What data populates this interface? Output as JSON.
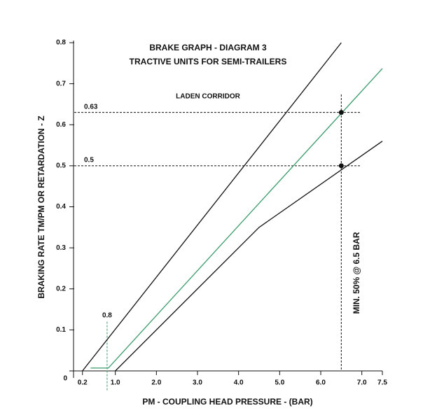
{
  "chart_data": {
    "type": "line",
    "title": "BRAKE GRAPH - DIAGRAM 3",
    "subtitle": "TRACTIVE UNITS FOR SEMI-TRAILERS",
    "x_label": "PM - COUPLING HEAD PRESSURE - (BAR)",
    "y_label": "BRAKING RATE TM/PM OR RETARDATION - Z",
    "xlim": [
      0,
      7.5
    ],
    "xticks": [
      0.2,
      {
        "value": 1,
        "label": "1.0"
      },
      {
        "value": 2,
        "label": "2.0"
      },
      {
        "value": 3,
        "label": "3.0"
      },
      {
        "value": 4,
        "label": "4.0"
      },
      {
        "value": 5,
        "label": "5.0"
      },
      {
        "value": 6,
        "label": "6.0"
      },
      {
        "value": 7,
        "label": "7.0"
      },
      7.5
    ],
    "ylim": [
      0,
      0.8
    ],
    "yticks": [
      0,
      0.1,
      0.2,
      0.3,
      0.4,
      0.5,
      0.6,
      0.7,
      0.8
    ],
    "series": [
      {
        "color": "#111111",
        "x": [
          0.2,
          6.5
        ],
        "values": [
          0,
          0.8
        ]
      },
      {
        "color": "#3a9a6a",
        "x": [
          0.4,
          0.83,
          7.5
        ],
        "values": [
          0.007,
          0.007,
          0.737
        ]
      },
      {
        "color": "#111111",
        "x": [
          1.0,
          4.5,
          7.5
        ],
        "values": [
          0,
          0.35,
          0.56
        ]
      }
    ],
    "h_reference_lines": [
      0.63,
      0.5
    ],
    "v_reference_lines": [
      {
        "value": 0.8,
        "label": "0.8",
        "color": "#3a9a6a"
      },
      {
        "value": 6.5,
        "color": "#111111"
      }
    ],
    "points": {
      "x": [
        6.5,
        6.5
      ],
      "values": [
        0.63,
        0.5
      ],
      "color": "#111111"
    },
    "annotations": [
      "LADEN CORRIDOR",
      "MIN. 50% @ 6.5 BAR"
    ]
  }
}
